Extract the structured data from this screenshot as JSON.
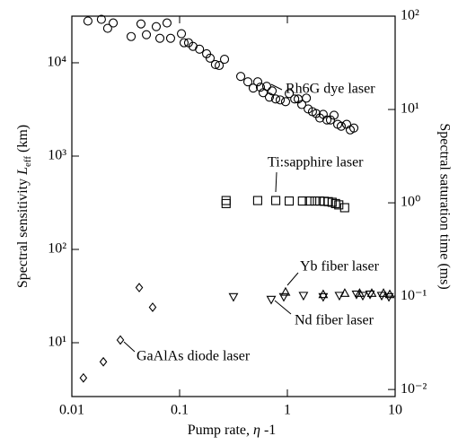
{
  "chart_data": {
    "type": "scatter",
    "xlabel": {
      "text": "Pump rate, ",
      "symbol": "η",
      "suffix": " -1"
    },
    "ylabel": {
      "text": "Spectral sensitivity ",
      "symbol": "L",
      "subscript": "eff",
      "unit": " (km)"
    },
    "y2label": "Spectral saturation time (ms)",
    "xscale": "log",
    "yscale": "log",
    "y2scale": "log",
    "xlim": [
      0.01,
      10
    ],
    "ylim": [
      2.65,
      31600
    ],
    "y2lim": [
      0.0084,
      100
    ],
    "xticks": [
      0.01,
      0.1,
      1,
      10
    ],
    "yticks": [
      {
        "value": 10,
        "label": "10¹"
      },
      {
        "value": 100,
        "label": "10²"
      },
      {
        "value": 1000,
        "label": "10³"
      },
      {
        "value": 10000,
        "label": "10⁴"
      }
    ],
    "y2ticks": [
      {
        "value": 0.01,
        "label": "10⁻²"
      },
      {
        "value": 0.1,
        "label": "10⁻¹"
      },
      {
        "value": 1,
        "label": "10⁰"
      },
      {
        "value": 10,
        "label": "10¹"
      },
      {
        "value": 100,
        "label": "10²"
      }
    ],
    "series": [
      {
        "name": "Rh6G dye laser",
        "marker": "circle",
        "color": "#000000",
        "x": [
          0.0141,
          0.0188,
          0.0215,
          0.0242,
          0.0355,
          0.0438,
          0.0492,
          0.0607,
          0.0656,
          0.0764,
          0.0825,
          0.104,
          0.11,
          0.121,
          0.133,
          0.153,
          0.178,
          0.192,
          0.215,
          0.233,
          0.261,
          0.369,
          0.43,
          0.482,
          0.531,
          0.562,
          0.596,
          0.643,
          0.681,
          0.722,
          0.779,
          0.858,
          0.962,
          1.04,
          1.17,
          1.26,
          1.36,
          1.5,
          1.56,
          1.71,
          1.85,
          2.0,
          2.15,
          2.33,
          2.51,
          2.71,
          2.93,
          3.16,
          3.55,
          3.83,
          4.14
        ],
        "values": [
          28000,
          29200,
          23400,
          26700,
          19100,
          26100,
          20000,
          24400,
          18300,
          26700,
          18300,
          20500,
          16400,
          16400,
          15000,
          14000,
          12500,
          11200,
          9570,
          9350,
          10900,
          7140,
          6250,
          5350,
          6250,
          5470,
          4780,
          5600,
          4280,
          5000,
          4090,
          4000,
          3830,
          4680,
          4090,
          4090,
          3570,
          4180,
          3200,
          2990,
          2860,
          2560,
          2800,
          2440,
          2440,
          2740,
          2190,
          2090,
          2190,
          1910,
          2000
        ]
      },
      {
        "name": "Ti:sapphire laser",
        "marker": "square",
        "color": "#000000",
        "x": [
          0.27,
          0.27,
          0.53,
          0.78,
          1.04,
          1.38,
          1.6,
          1.8,
          2.0,
          2.2,
          2.4,
          2.6,
          2.8,
          3.0,
          3.4
        ],
        "values": [
          334,
          310,
          334,
          334,
          330,
          330,
          330,
          330,
          330,
          328,
          325,
          320,
          310,
          300,
          280
        ]
      },
      {
        "name": "Yb fiber laser",
        "marker": "triangle-up",
        "color": "#000000",
        "x": [
          0.962,
          2.15,
          3.41,
          4.68,
          6.07,
          7.8,
          8.91
        ],
        "values": [
          35,
          33,
          34,
          34,
          34,
          34,
          33
        ]
      },
      {
        "name": "Nd fiber laser",
        "marker": "triangle-down",
        "color": "#000000",
        "x": [
          0.316,
          0.708,
          0.926,
          1.41,
          2.15,
          3.04,
          4.38,
          5.01,
          5.85,
          7.5,
          8.75
        ],
        "values": [
          31,
          29,
          31,
          32,
          31,
          32,
          33,
          32,
          33,
          32,
          31
        ]
      },
      {
        "name": "GaAlAs diode laser",
        "marker": "diamond",
        "color": "#000000",
        "x": [
          0.0128,
          0.0196,
          0.0282,
          0.0422,
          0.0562
        ],
        "values": [
          4.2,
          6.25,
          10.7,
          39,
          24
        ]
      }
    ]
  }
}
